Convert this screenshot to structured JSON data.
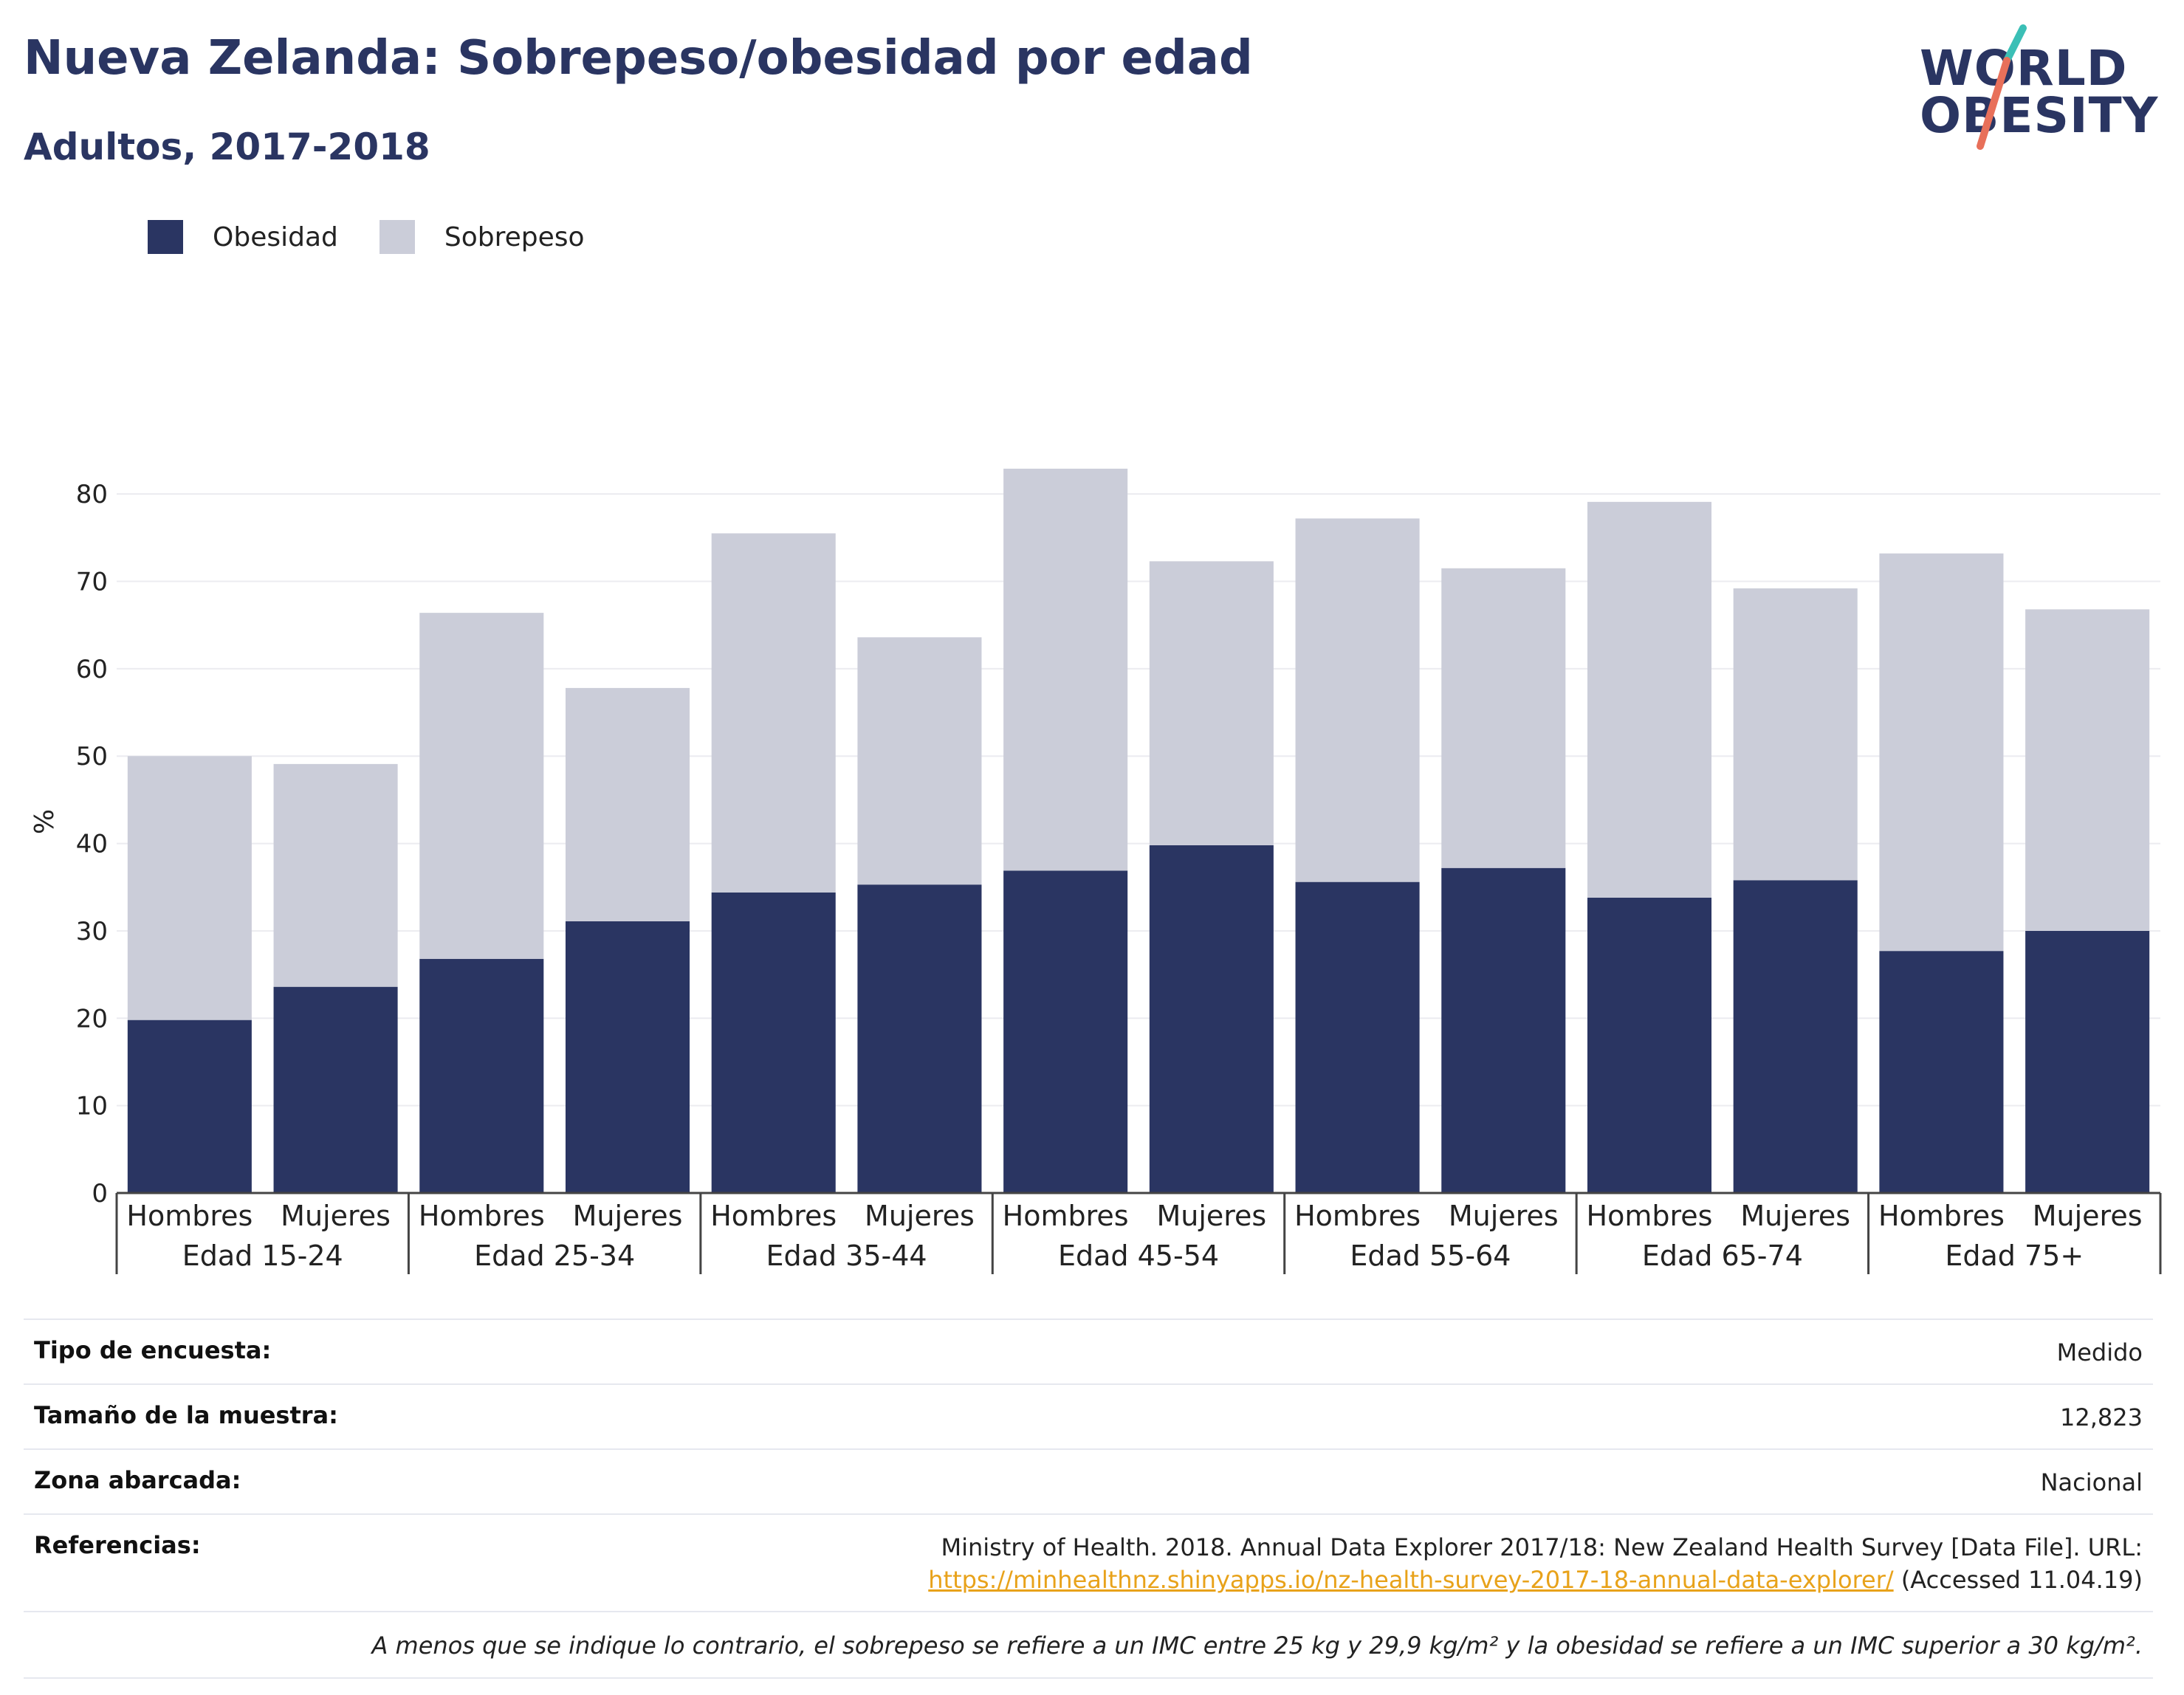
{
  "header": {
    "title": "Nueva Zelanda: Sobrepeso/obesidad por edad",
    "subtitle": "Adultos, 2017-2018"
  },
  "logo": {
    "line1": "WORLD",
    "line2": "OBESITY",
    "accent_teal": "#3bbfb6",
    "accent_coral": "#e8705a"
  },
  "legend": {
    "items": [
      {
        "label": "Obesidad",
        "color": "#2a3562"
      },
      {
        "label": "Sobrepeso",
        "color": "#cbcdd9"
      }
    ]
  },
  "chart_data": {
    "type": "bar",
    "stacked": true,
    "ylabel": "%",
    "ylim": [
      0,
      85
    ],
    "yticks": [
      0,
      10,
      20,
      30,
      40,
      50,
      60,
      70,
      80
    ],
    "grid": true,
    "legend_position": "top-left",
    "groups": [
      "Edad 15-24",
      "Edad 25-34",
      "Edad 35-44",
      "Edad 45-54",
      "Edad 55-64",
      "Edad 65-74",
      "Edad 75+"
    ],
    "categories": [
      "Hombres",
      "Mujeres",
      "Hombres",
      "Mujeres",
      "Hombres",
      "Mujeres",
      "Hombres",
      "Mujeres",
      "Hombres",
      "Mujeres",
      "Hombres",
      "Mujeres",
      "Hombres",
      "Mujeres"
    ],
    "series": [
      {
        "name": "Obesidad",
        "color": "#2a3562",
        "values": [
          19.8,
          23.6,
          26.8,
          31.1,
          34.4,
          35.3,
          36.9,
          39.8,
          35.6,
          37.2,
          33.8,
          35.8,
          27.7,
          30.0
        ]
      },
      {
        "name": "Sobrepeso",
        "color": "#cbcdd9",
        "values": [
          30.2,
          25.5,
          39.6,
          26.7,
          41.1,
          28.3,
          46.0,
          32.5,
          41.6,
          34.3,
          45.3,
          33.4,
          45.5,
          36.8
        ]
      }
    ]
  },
  "info": {
    "survey_type_label": "Tipo de encuesta:",
    "survey_type_value": "Medido",
    "sample_size_label": "Tamaño de la muestra:",
    "sample_size_value": "12,823",
    "area_label": "Zona abarcada:",
    "area_value": "Nacional",
    "references_label": "Referencias:",
    "references_text": "Ministry of Health. 2018. Annual Data Explorer 2017/18: New Zealand Health Survey [Data File]. URL:",
    "references_link": "https://minhealthnz.shinyapps.io/nz-health-survey-2017-18-annual-data-explorer/",
    "references_accessed": " (Accessed 11.04.19)",
    "footnote": "A menos que se indique lo contrario, el sobrepeso se refiere a un IMC entre 25 kg y 29,9 kg/m² y la obesidad se refiere a un IMC superior a 30 kg/m²."
  }
}
